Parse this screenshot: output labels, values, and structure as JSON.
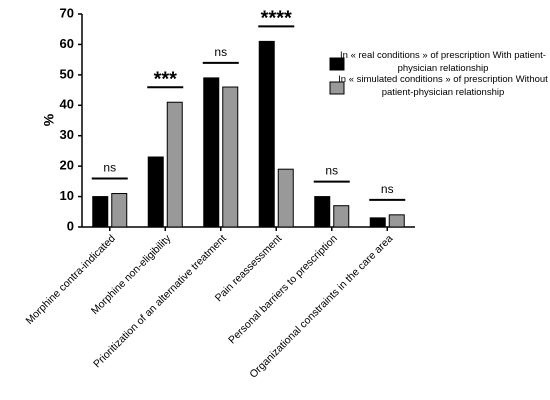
{
  "chart_data": {
    "type": "bar",
    "y_label": "%",
    "categories": [
      "Morphine contra-indicated",
      "Morphine non-eligibility",
      "Prioritization of an alternative treatment",
      "Pain reassessment",
      "Personal barriers to prescription",
      "Organizational constraints in the care area"
    ],
    "series": [
      {
        "name": "In « real  conditions » of prescription With patient-physician relationship",
        "color": "#000000",
        "values": [
          10,
          23,
          49,
          61,
          10,
          3
        ]
      },
      {
        "name": "In « simulated conditions » of prescription Without patient-physician relationship",
        "color": "#999999",
        "values": [
          11,
          41,
          46,
          19,
          7,
          4
        ]
      }
    ],
    "annotations": [
      "ns",
      "***",
      "ns",
      "****",
      "ns",
      "ns"
    ],
    "ylim": [
      0,
      70
    ],
    "yticks": [
      0,
      10,
      20,
      30,
      40,
      50,
      60,
      70
    ]
  }
}
